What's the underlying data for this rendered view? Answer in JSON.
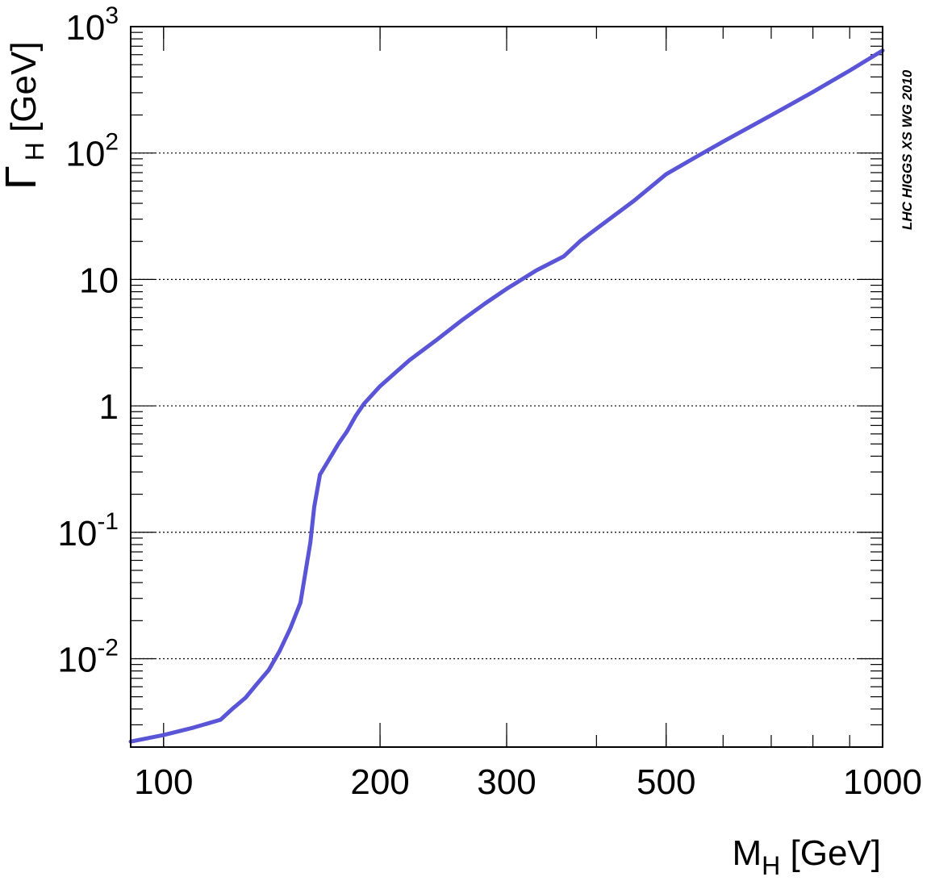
{
  "chart_data": {
    "type": "line",
    "x_scale": "log",
    "y_scale": "log",
    "xlim": [
      90,
      1000
    ],
    "ylim": [
      0.002,
      1000
    ],
    "grid": {
      "x": false,
      "y": true,
      "style": "dotted"
    },
    "xlabel": {
      "main": "M",
      "sub": "H",
      "unit": " [GeV]"
    },
    "ylabel": {
      "main": "Γ",
      "sub": "H",
      "unit": " [GeV]"
    },
    "annotation": "LHC HIGGS XS WG 2010",
    "x_ticks": [
      {
        "value": 100,
        "label": "100"
      },
      {
        "value": 200,
        "label": "200"
      },
      {
        "value": 300,
        "label": "300"
      },
      {
        "value": 500,
        "label": "500"
      },
      {
        "value": 1000,
        "label": "1000"
      }
    ],
    "y_ticks": [
      {
        "value": 0.01,
        "base": "10",
        "exp": "-2"
      },
      {
        "value": 0.1,
        "base": "10",
        "exp": "-1"
      },
      {
        "value": 1,
        "base": "1",
        "exp": ""
      },
      {
        "value": 10,
        "base": "10",
        "exp": ""
      },
      {
        "value": 100,
        "base": "10",
        "exp": "2"
      },
      {
        "value": 1000,
        "base": "10",
        "exp": "3"
      }
    ],
    "series": [
      {
        "color": "#5a55d6",
        "x": [
          90,
          100,
          110,
          120,
          125,
          130,
          135,
          140,
          145,
          150,
          155,
          160,
          162,
          165,
          170,
          175,
          180,
          185,
          190,
          200,
          210,
          220,
          240,
          260,
          280,
          300,
          330,
          360,
          380,
          400,
          450,
          500,
          550,
          600,
          700,
          800,
          900,
          1000
        ],
        "y": [
          0.00221,
          0.00249,
          0.00285,
          0.00329,
          0.00407,
          0.00491,
          0.00637,
          0.00812,
          0.0115,
          0.0173,
          0.0277,
          0.0831,
          0.159,
          0.286,
          0.379,
          0.5,
          0.631,
          0.833,
          1.04,
          1.43,
          1.83,
          2.31,
          3.34,
          4.76,
          6.46,
          8.43,
          11.8,
          15.2,
          20.2,
          25.2,
          41.5,
          68.0,
          93.0,
          123,
          199,
          304,
          449,
          647
        ]
      }
    ]
  }
}
